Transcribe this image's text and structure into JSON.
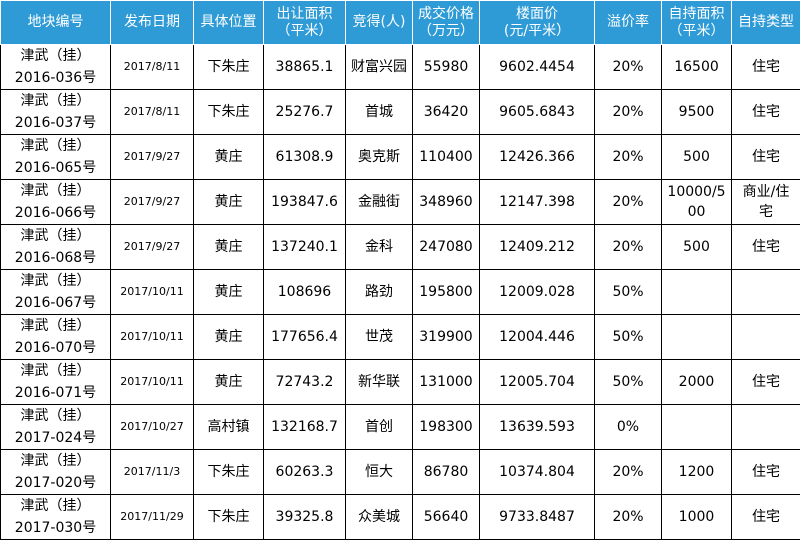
{
  "columns": [
    {
      "l1": "地块编号",
      "l2": ""
    },
    {
      "l1": "发布日期",
      "l2": ""
    },
    {
      "l1": "具体位置",
      "l2": ""
    },
    {
      "l1": "出让面积",
      "l2": "（平米）"
    },
    {
      "l1": "竞得(人)",
      "l2": ""
    },
    {
      "l1": "成交价格",
      "l2": "（万元）"
    },
    {
      "l1": "楼面价",
      "l2": "(元/平米）"
    },
    {
      "l1": "溢价率",
      "l2": ""
    },
    {
      "l1": "自持面积",
      "l2": "（平米）"
    },
    {
      "l1": "自持类型",
      "l2": ""
    }
  ],
  "rows": [
    {
      "plot_a": "津武（挂）",
      "plot_b": "2016-036号",
      "date": "2017/8/11",
      "location": "下朱庄",
      "area": "38865.1",
      "winner": "财富兴园",
      "price": "55980",
      "floor_price": "9602.4454",
      "premium": "20%",
      "self_area_a": "16500",
      "self_area_b": "",
      "self_type_a": "住宅",
      "self_type_b": ""
    },
    {
      "plot_a": "津武（挂）",
      "plot_b": "2016-037号",
      "date": "2017/8/11",
      "location": "下朱庄",
      "area": "25276.7",
      "winner": "首城",
      "price": "36420",
      "floor_price": "9605.6843",
      "premium": "20%",
      "self_area_a": "9500",
      "self_area_b": "",
      "self_type_a": "住宅",
      "self_type_b": ""
    },
    {
      "plot_a": "津武（挂）",
      "plot_b": "2016-065号",
      "date": "2017/9/27",
      "location": "黄庄",
      "area": "61308.9",
      "winner": "奥克斯",
      "price": "110400",
      "floor_price": "12426.366",
      "premium": "20%",
      "self_area_a": "500",
      "self_area_b": "",
      "self_type_a": "住宅",
      "self_type_b": ""
    },
    {
      "plot_a": "津武（挂）",
      "plot_b": "2016-066号",
      "date": "2017/9/27",
      "location": "黄庄",
      "area": "193847.6",
      "winner": "金融街",
      "price": "348960",
      "floor_price": "12147.398",
      "premium": "20%",
      "self_area_a": "10000/5",
      "self_area_b": "00",
      "self_type_a": "商业/住",
      "self_type_b": "宅"
    },
    {
      "plot_a": "津武（挂）",
      "plot_b": "2016-068号",
      "date": "2017/9/27",
      "location": "黄庄",
      "area": "137240.1",
      "winner": "金科",
      "price": "247080",
      "floor_price": "12409.212",
      "premium": "20%",
      "self_area_a": "500",
      "self_area_b": "",
      "self_type_a": "住宅",
      "self_type_b": ""
    },
    {
      "plot_a": "津武（挂）",
      "plot_b": "2016-067号",
      "date": "2017/10/11",
      "location": "黄庄",
      "area": "108696",
      "winner": "路劲",
      "price": "195800",
      "floor_price": "12009.028",
      "premium": "50%",
      "self_area_a": "",
      "self_area_b": "",
      "self_type_a": "",
      "self_type_b": ""
    },
    {
      "plot_a": "津武（挂）",
      "plot_b": "2016-070号",
      "date": "2017/10/11",
      "location": "黄庄",
      "area": "177656.4",
      "winner": "世茂",
      "price": "319900",
      "floor_price": "12004.446",
      "premium": "50%",
      "self_area_a": "",
      "self_area_b": "",
      "self_type_a": "",
      "self_type_b": ""
    },
    {
      "plot_a": "津武（挂）",
      "plot_b": "2016-071号",
      "date": "2017/10/11",
      "location": "黄庄",
      "area": "72743.2",
      "winner": "新华联",
      "price": "131000",
      "floor_price": "12005.704",
      "premium": "50%",
      "self_area_a": "2000",
      "self_area_b": "",
      "self_type_a": "住宅",
      "self_type_b": ""
    },
    {
      "plot_a": "津武（挂）",
      "plot_b": "2017-024号",
      "date": "2017/10/27",
      "location": "高村镇",
      "area": "132168.7",
      "winner": "首创",
      "price": "198300",
      "floor_price": "13639.593",
      "premium": "0%",
      "self_area_a": "",
      "self_area_b": "",
      "self_type_a": "",
      "self_type_b": ""
    },
    {
      "plot_a": "津武（挂）",
      "plot_b": "2017-020号",
      "date": "2017/11/3",
      "location": "下朱庄",
      "area": "60263.3",
      "winner": "恒大",
      "price": "86780",
      "floor_price": "10374.804",
      "premium": "20%",
      "self_area_a": "1200",
      "self_area_b": "",
      "self_type_a": "住宅",
      "self_type_b": ""
    },
    {
      "plot_a": "津武（挂）",
      "plot_b": "2017-030号",
      "date": "2017/11/29",
      "location": "下朱庄",
      "area": "39325.8",
      "winner": "众美城",
      "price": "56640",
      "floor_price": "9733.8487",
      "premium": "20%",
      "self_area_a": "1000",
      "self_area_b": "",
      "self_type_a": "住宅",
      "self_type_b": ""
    }
  ]
}
